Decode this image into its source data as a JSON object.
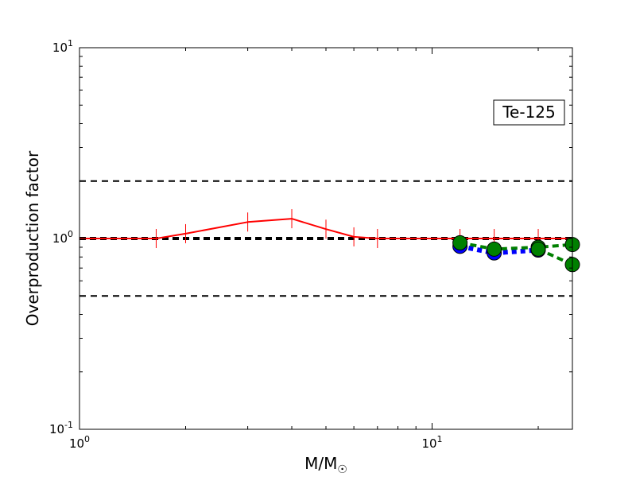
{
  "chart_data": {
    "type": "line",
    "xlabel": "M/M",
    "xlabel_sub": "☉",
    "ylabel": "Overproduction factor",
    "annotation": "Te-125",
    "x_scale": "log",
    "y_scale": "log",
    "xlim": [
      1,
      25
    ],
    "ylim": [
      0.1,
      10
    ],
    "x_tick_labels": [
      {
        "value": 1,
        "base": "10",
        "exp": "0"
      },
      {
        "value": 10,
        "base": "10",
        "exp": "1"
      }
    ],
    "y_tick_labels": [
      {
        "value": 0.1,
        "base": "10",
        "exp": "-1"
      },
      {
        "value": 1,
        "base": "10",
        "exp": "0"
      },
      {
        "value": 10,
        "base": "10",
        "exp": "1"
      }
    ],
    "reference_lines": [
      {
        "y": 2.0,
        "style": "dashed"
      },
      {
        "y": 1.0,
        "style": "dashed-thick"
      },
      {
        "y": 0.5,
        "style": "dashed"
      }
    ],
    "series": [
      {
        "color": "#ff0000",
        "style": "solid",
        "marker": "vline",
        "x": [
          1.0,
          1.65,
          2.0,
          3.0,
          4.0,
          5.0,
          6.0,
          7.0,
          12.0,
          15.0,
          20.0,
          25.0
        ],
        "y": [
          1.0,
          1.0,
          1.06,
          1.22,
          1.27,
          1.12,
          1.02,
          1.0,
          1.0,
          1.0,
          1.0,
          1.0
        ],
        "marker_x": [
          1.65,
          2.0,
          3.0,
          4.0,
          5.0,
          6.0,
          7.0,
          12.0,
          15.0,
          20.0
        ]
      },
      {
        "color": "#0000ff",
        "style": "dotted-thick",
        "marker": "circle",
        "x": [
          12.0,
          15.0,
          20.0
        ],
        "y": [
          0.91,
          0.84,
          0.87
        ]
      },
      {
        "color": "#008000",
        "style": "dashed-thick",
        "marker": "circle",
        "x": [
          12.0,
          15.0,
          20.0,
          25.0
        ],
        "y": [
          0.95,
          0.88,
          0.9,
          0.93
        ]
      },
      {
        "color": "#008000",
        "style": "dashed-thick",
        "marker": "circle",
        "x": [
          20.0,
          25.0
        ],
        "y": [
          0.88,
          0.73
        ]
      }
    ]
  }
}
